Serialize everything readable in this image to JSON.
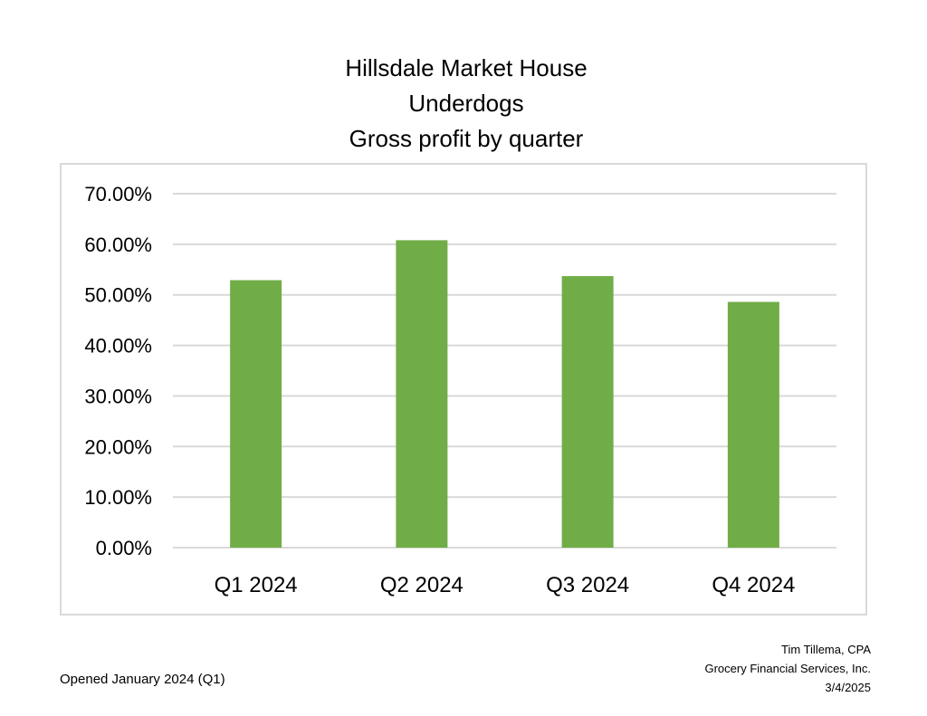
{
  "header": {
    "title_lines": [
      "Hillsdale Market House",
      "Underdogs",
      "Gross profit by quarter"
    ]
  },
  "chart_data": {
    "type": "bar",
    "title": "Hillsdale Market House Underdogs Gross profit by quarter",
    "categories": [
      "Q1 2024",
      "Q2 2024",
      "Q3 2024",
      "Q4 2024"
    ],
    "values": [
      52.9,
      60.8,
      53.7,
      48.6
    ],
    "value_format": "percent",
    "ylim": [
      0,
      70
    ],
    "yticks": [
      0,
      10,
      20,
      30,
      40,
      50,
      60,
      70
    ],
    "ytick_labels": [
      "0.00%",
      "10.00%",
      "20.00%",
      "30.00%",
      "40.00%",
      "50.00%",
      "60.00%",
      "70.00%"
    ],
    "xlabel": "",
    "ylabel": "",
    "grid": true,
    "legend": "none",
    "bar_color": "#70ad47",
    "gridline_color": "#d9d9d9"
  },
  "footer": {
    "note": "Opened January 2024 (Q1)",
    "author": "Tim Tillema, CPA",
    "company": "Grocery Financial Services, Inc.",
    "date": "3/4/2025"
  }
}
